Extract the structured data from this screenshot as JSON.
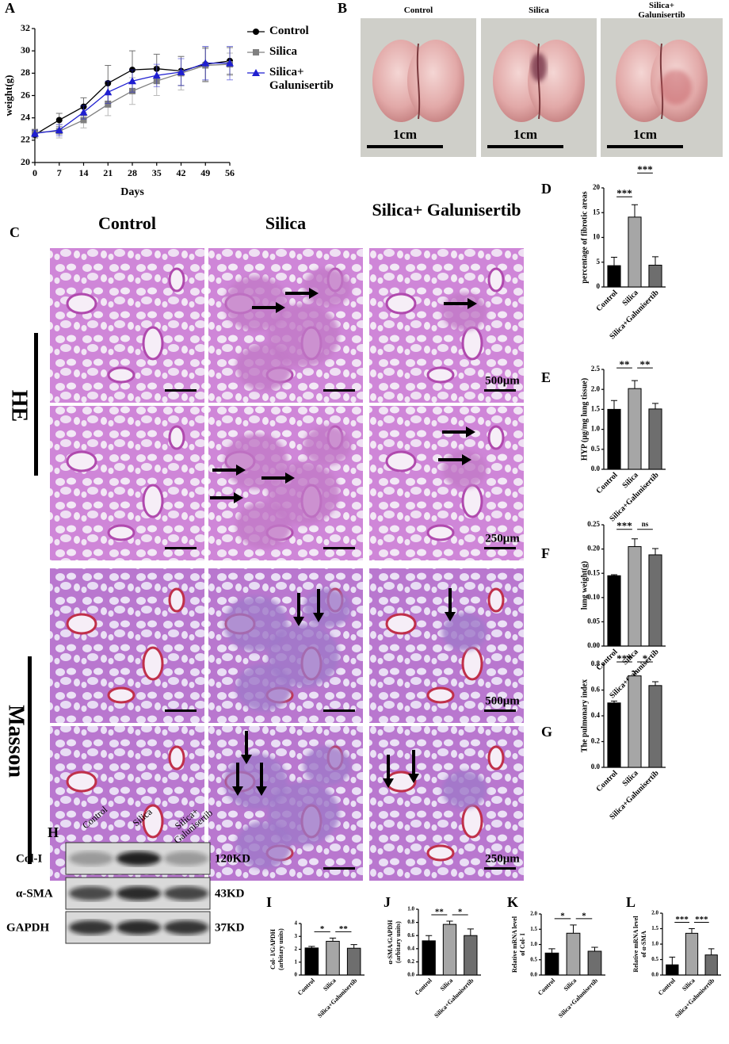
{
  "chart_data": [
    {
      "type": "line",
      "panel_label": "A",
      "xlabel": "Days",
      "ylabel": "weight(g)",
      "x": [
        0,
        7,
        14,
        21,
        28,
        35,
        42,
        49,
        56
      ],
      "xlim": [
        0,
        56
      ],
      "xticks": [
        0,
        7,
        14,
        21,
        28,
        35,
        42,
        49,
        56
      ],
      "ylim": [
        20,
        32
      ],
      "yticks": [
        20,
        22,
        24,
        26,
        28,
        30,
        32
      ],
      "series": [
        {
          "name": "Control",
          "color": "#000000",
          "marker": "circle",
          "values": [
            22.5,
            23.8,
            25.0,
            27.1,
            28.3,
            28.4,
            28.2,
            28.8,
            29.1
          ],
          "errors": [
            0.3,
            0.6,
            0.8,
            1.6,
            1.7,
            1.3,
            1.3,
            1.5,
            1.2
          ]
        },
        {
          "name": "Silica",
          "color": "#808080",
          "marker": "square",
          "values": [
            22.7,
            22.8,
            23.8,
            25.2,
            26.4,
            27.3,
            28.0,
            28.7,
            28.8
          ],
          "errors": [
            0.3,
            0.6,
            0.7,
            1.0,
            1.2,
            1.3,
            1.5,
            1.5,
            1.0
          ]
        },
        {
          "name": "Silica+ Galunisertib",
          "color": "#1f1fd0",
          "marker": "triangle",
          "values": [
            22.6,
            22.9,
            24.5,
            26.3,
            27.3,
            27.8,
            28.1,
            28.9,
            28.9
          ],
          "errors": [
            0.3,
            0.5,
            0.6,
            1.0,
            1.0,
            1.0,
            1.2,
            1.5,
            1.5
          ]
        }
      ]
    },
    {
      "type": "bar",
      "panel_label": "D",
      "ylabel": [
        "percentage of fibrotic areas"
      ],
      "categories": [
        "Control",
        "Silica",
        "Silica+Galunisertib"
      ],
      "values": [
        4.3,
        14.1,
        4.4
      ],
      "errors": [
        1.7,
        2.5,
        1.7
      ],
      "colors": [
        "#000000",
        "#a6a6a6",
        "#6e6e6e"
      ],
      "ylim": [
        0,
        20
      ],
      "yticks": [
        0,
        5,
        10,
        15,
        20
      ],
      "significance": [
        {
          "pair": [
            "Control",
            "Silica"
          ],
          "label": "***"
        },
        {
          "pair": [
            "Silica",
            "Silica+Galunisertib"
          ],
          "label": "***"
        }
      ]
    },
    {
      "type": "bar",
      "panel_label": "E",
      "ylabel": [
        "HYP (μg/mg lung tissue)"
      ],
      "categories": [
        "Control",
        "Silica",
        "Silica+Galunisertib"
      ],
      "values": [
        1.5,
        2.02,
        1.51
      ],
      "errors": [
        0.22,
        0.2,
        0.14
      ],
      "colors": [
        "#000000",
        "#a6a6a6",
        "#6e6e6e"
      ],
      "ylim": [
        0,
        2.5
      ],
      "yticks": [
        {
          "value": 0,
          "label": "0.0"
        },
        0.5,
        {
          "value": 1,
          "label": "1.0"
        },
        1.5,
        {
          "value": 2,
          "label": "2.0"
        },
        2.5
      ],
      "significance": [
        {
          "pair": [
            "Control",
            "Silica"
          ],
          "label": "**"
        },
        {
          "pair": [
            "Silica",
            "Silica+Galunisertib"
          ],
          "label": "**"
        }
      ]
    },
    {
      "type": "bar",
      "panel_label": "F",
      "ylabel": [
        "lung weight(g)"
      ],
      "categories": [
        "Control",
        "Silica",
        "Silica+Galunisertib"
      ],
      "values": [
        0.145,
        0.205,
        0.188
      ],
      "errors": [
        0.002,
        0.016,
        0.013
      ],
      "colors": [
        "#000000",
        "#a6a6a6",
        "#6e6e6e"
      ],
      "ylim": [
        0,
        0.25
      ],
      "yticks": [
        {
          "value": 0,
          "label": "0.00"
        },
        0.05,
        {
          "value": 0.1,
          "label": "0.10"
        },
        0.15,
        {
          "value": 0.2,
          "label": "0.20"
        },
        0.25
      ],
      "significance": [
        {
          "pair": [
            "Control",
            "Silica"
          ],
          "label": "***"
        },
        {
          "pair": [
            "Silica",
            "Silica+Galunisertib"
          ],
          "label": "ns"
        }
      ]
    },
    {
      "type": "bar",
      "panel_label": "G",
      "ylabel": [
        "The pulmonary index"
      ],
      "categories": [
        "Control",
        "Silica",
        "Silica+Galunisertib"
      ],
      "values": [
        0.5,
        0.71,
        0.635
      ],
      "errors": [
        0.015,
        0.035,
        0.03
      ],
      "colors": [
        "#000000",
        "#a6a6a6",
        "#6e6e6e"
      ],
      "ylim": [
        0,
        0.8
      ],
      "yticks": [
        {
          "value": 0,
          "label": "0.0"
        },
        0.2,
        0.4,
        0.6,
        0.8
      ],
      "significance": [
        {
          "pair": [
            "Control",
            "Silica"
          ],
          "label": "***"
        },
        {
          "pair": [
            "Silica",
            "Silica+Galunisertib"
          ],
          "label": "*"
        }
      ]
    },
    {
      "type": "bar",
      "panel_label": "I",
      "ylabel": [
        "Col- I/GAPDH",
        "(arbitary units)"
      ],
      "categories": [
        "Control",
        "Silica",
        "Silica+Galunisertib"
      ],
      "values": [
        2.1,
        2.62,
        2.08
      ],
      "errors": [
        0.12,
        0.25,
        0.28
      ],
      "colors": [
        "#000000",
        "#a6a6a6",
        "#6e6e6e"
      ],
      "ylim": [
        0,
        4
      ],
      "yticks": [
        0,
        1,
        2,
        3,
        4
      ],
      "significance": [
        {
          "pair": [
            "Control",
            "Silica"
          ],
          "label": "*"
        },
        {
          "pair": [
            "Silica",
            "Silica+Galunisertib"
          ],
          "label": "**"
        }
      ]
    },
    {
      "type": "bar",
      "panel_label": "J",
      "ylabel": [
        "α-SMA/GAPDH",
        "(arbitary units)"
      ],
      "categories": [
        "Control",
        "Silica",
        "Silica+Galunisertib"
      ],
      "values": [
        0.52,
        0.77,
        0.6
      ],
      "errors": [
        0.08,
        0.05,
        0.1
      ],
      "colors": [
        "#000000",
        "#a6a6a6",
        "#6e6e6e"
      ],
      "ylim": [
        0,
        1
      ],
      "yticks": [
        {
          "value": 0,
          "label": "0.0"
        },
        0.2,
        0.4,
        0.6,
        0.8,
        {
          "value": 1,
          "label": "1.0"
        }
      ],
      "significance": [
        {
          "pair": [
            "Control",
            "Silica"
          ],
          "label": "**"
        },
        {
          "pair": [
            "Silica",
            "Silica+Galunisertib"
          ],
          "label": "*"
        }
      ]
    },
    {
      "type": "bar",
      "panel_label": "K",
      "ylabel": [
        "Relative mRNA level",
        "of Col- I"
      ],
      "categories": [
        "Control",
        "Silica",
        "Silica+Galunisertib"
      ],
      "values": [
        0.72,
        1.37,
        0.78
      ],
      "errors": [
        0.14,
        0.27,
        0.13
      ],
      "colors": [
        "#000000",
        "#a6a6a6",
        "#6e6e6e"
      ],
      "ylim": [
        0,
        2
      ],
      "yticks": [
        {
          "value": 0,
          "label": "0.0"
        },
        0.5,
        {
          "value": 1,
          "label": "1.0"
        },
        1.5,
        {
          "value": 2,
          "label": "2.0"
        }
      ],
      "significance": [
        {
          "pair": [
            "Control",
            "Silica"
          ],
          "label": "*"
        },
        {
          "pair": [
            "Silica",
            "Silica+Galunisertib"
          ],
          "label": "*"
        }
      ]
    },
    {
      "type": "bar",
      "panel_label": "L",
      "ylabel": [
        "Relative mRNA level",
        "of α-SMA"
      ],
      "categories": [
        "Control",
        "Silica",
        "Silica+Galunisertib"
      ],
      "values": [
        0.33,
        1.35,
        0.65
      ],
      "errors": [
        0.25,
        0.15,
        0.2
      ],
      "colors": [
        "#000000",
        "#a6a6a6",
        "#6e6e6e"
      ],
      "ylim": [
        0,
        2
      ],
      "yticks": [
        {
          "value": 0,
          "label": "0.0"
        },
        0.5,
        {
          "value": 1,
          "label": "1.0"
        },
        1.5,
        {
          "value": 2,
          "label": "2.0"
        }
      ],
      "significance": [
        {
          "pair": [
            "Control",
            "Silica"
          ],
          "label": "***"
        },
        {
          "pair": [
            "Silica",
            "Silica+Galunisertib"
          ],
          "label": "***"
        }
      ]
    }
  ],
  "panel_B": {
    "panel_label": "B",
    "images": [
      {
        "label": "Control",
        "scale": "1cm"
      },
      {
        "label": "Silica",
        "scale": "1cm"
      },
      {
        "label": "Silica+ Galunisertib",
        "scale": "1cm"
      }
    ]
  },
  "panel_C": {
    "panel_label": "C",
    "columns": [
      "Control",
      "Silica",
      "Silica+ Galunisertib"
    ],
    "stains": [
      "HE",
      "Masson"
    ],
    "scale_labels": [
      "500μm",
      "250μm",
      "500μm",
      "250μm"
    ]
  },
  "panel_H": {
    "panel_label": "H",
    "lanes": [
      "Control",
      "Silica",
      "Silica+ Galunisertib"
    ],
    "blots": [
      {
        "protein": "Col-I",
        "size": "120KD"
      },
      {
        "protein": "α-SMA",
        "size": "43KD"
      },
      {
        "protein": "GAPDH",
        "size": "37KD"
      }
    ]
  }
}
